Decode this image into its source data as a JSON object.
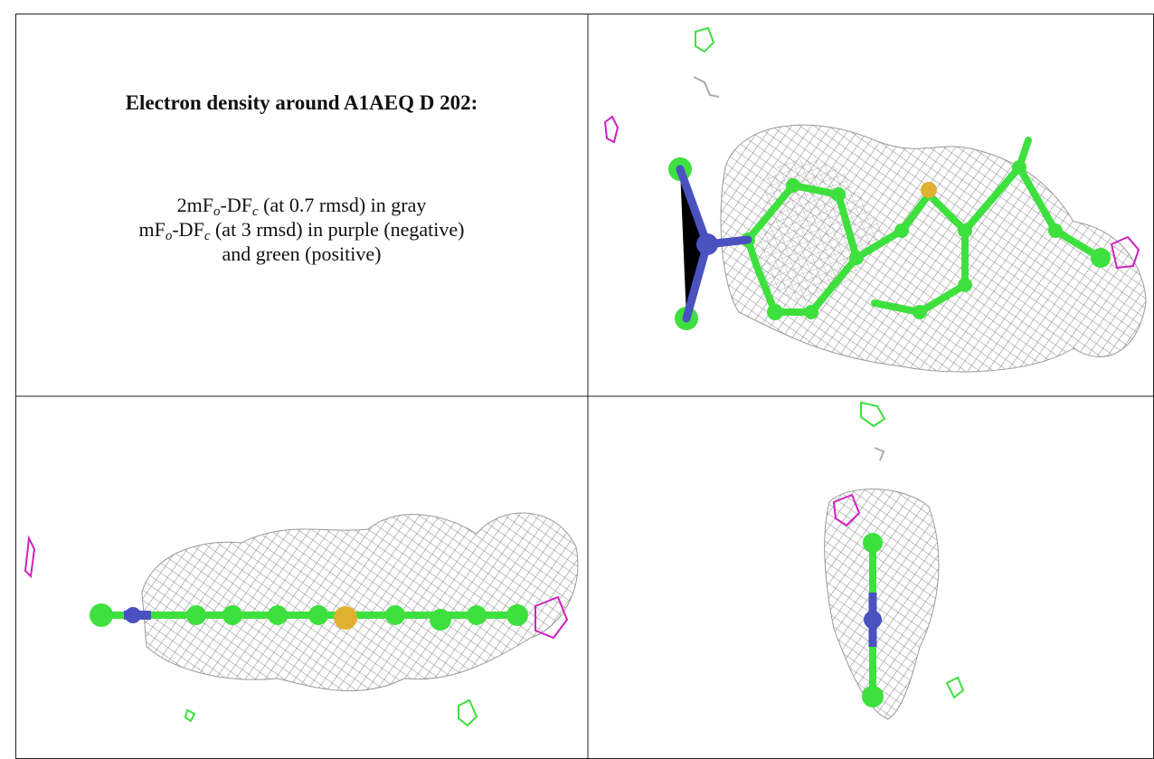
{
  "caption": {
    "title": "Electron density around A1AEQ D 202:",
    "lines": [
      [
        "2mF",
        "o",
        "-DF",
        "c",
        " (at 0.7 rmsd) in gray"
      ],
      [
        "mF",
        "o",
        "-DF",
        "c",
        " (at 3 rmsd) in purple (negative)"
      ],
      [
        "and green (positive)"
      ]
    ]
  }
}
